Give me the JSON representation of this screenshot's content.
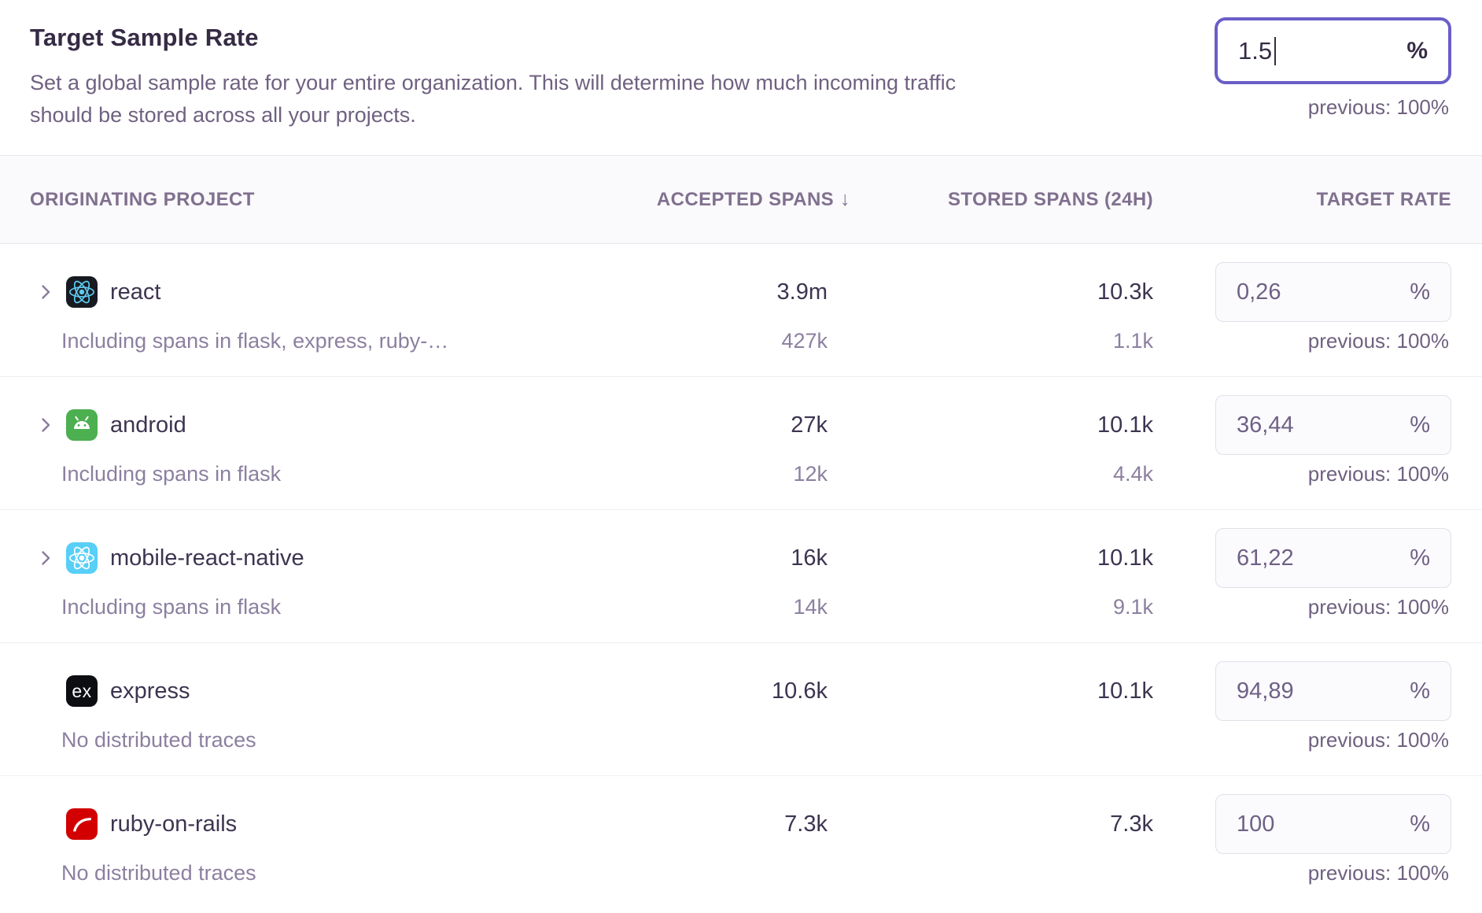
{
  "colors": {
    "accent": "#6a5ec8",
    "title_text": "#352b44",
    "muted_text": "#6f6180",
    "subtext": "#8c80a0"
  },
  "header": {
    "title": "Target Sample Rate",
    "description_lines": [
      "Set a global sample rate for your entire organization. This will determine how much incoming traffic",
      "should be stored across all your projects."
    ],
    "input": {
      "value": "1.5",
      "unit": "%",
      "previous": "previous: 100%"
    }
  },
  "table": {
    "columns": [
      {
        "label": "ORIGINATING PROJECT"
      },
      {
        "label": "ACCEPTED SPANS",
        "sort_icon": "↓"
      },
      {
        "label": "STORED SPANS (24H)"
      },
      {
        "label": "TARGET RATE"
      }
    ],
    "rows": [
      {
        "project": "react",
        "platform": "react",
        "expandable": true,
        "subtext": "Including spans in flask, express, ruby-…",
        "accepted": "3.9m",
        "accepted_sub": "427k",
        "stored": "10.3k",
        "stored_sub": "1.1k",
        "rate": "0,26",
        "unit": "%",
        "previous": "previous: 100%"
      },
      {
        "project": "android",
        "platform": "android",
        "expandable": true,
        "subtext": "Including spans in flask",
        "accepted": "27k",
        "accepted_sub": "12k",
        "stored": "10.1k",
        "stored_sub": "4.4k",
        "rate": "36,44",
        "unit": "%",
        "previous": "previous: 100%"
      },
      {
        "project": "mobile-react-native",
        "platform": "react-blue",
        "expandable": true,
        "subtext": "Including spans in flask",
        "accepted": "16k",
        "accepted_sub": "14k",
        "stored": "10.1k",
        "stored_sub": "9.1k",
        "rate": "61,22",
        "unit": "%",
        "previous": "previous: 100%"
      },
      {
        "project": "express",
        "platform": "express",
        "expandable": false,
        "subtext": "No distributed traces",
        "accepted": "10.6k",
        "accepted_sub": "",
        "stored": "10.1k",
        "stored_sub": "",
        "rate": "94,89",
        "unit": "%",
        "previous": "previous: 100%"
      },
      {
        "project": "ruby-on-rails",
        "platform": "rails",
        "expandable": false,
        "subtext": "No distributed traces",
        "accepted": "7.3k",
        "accepted_sub": "",
        "stored": "7.3k",
        "stored_sub": "",
        "rate": "100",
        "unit": "%",
        "previous": "previous: 100%"
      }
    ]
  }
}
